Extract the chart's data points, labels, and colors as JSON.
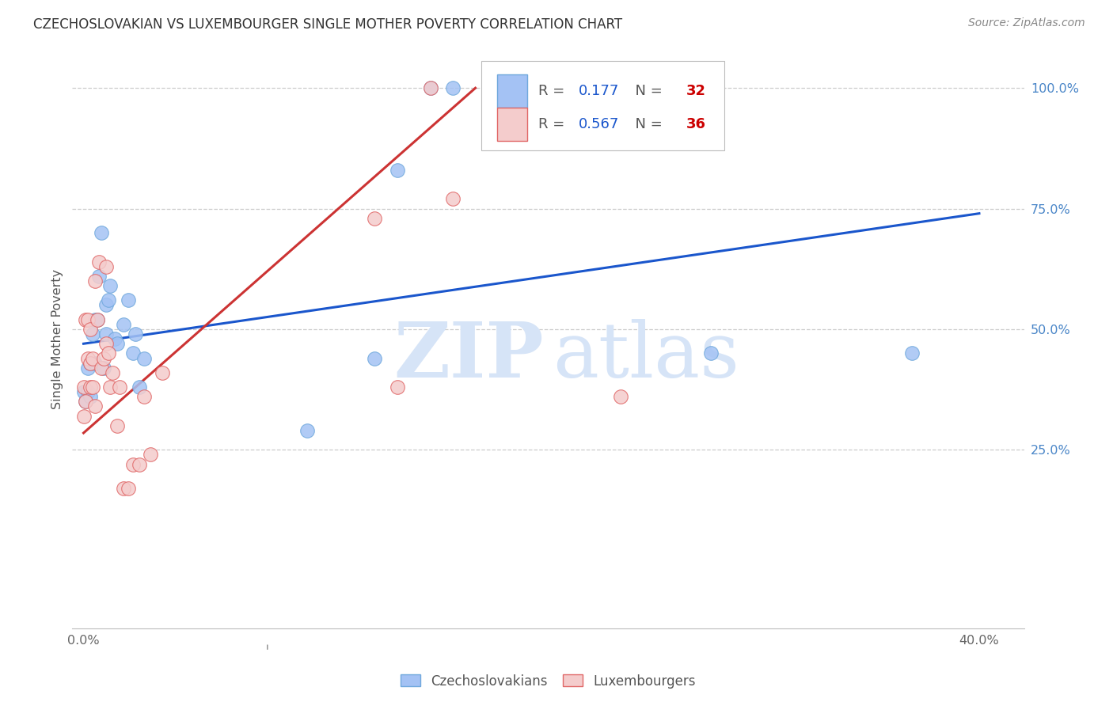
{
  "title": "CZECHOSLOVAKIAN VS LUXEMBOURGER SINGLE MOTHER POVERTY CORRELATION CHART",
  "source": "Source: ZipAtlas.com",
  "ylabel": "Single Mother Poverty",
  "blue_R": "0.177",
  "blue_N": "32",
  "pink_R": "0.567",
  "pink_N": "36",
  "blue_dot_color": "#a4c2f4",
  "pink_dot_color": "#f4cccc",
  "blue_dot_edge": "#6fa8dc",
  "pink_dot_edge": "#e06666",
  "blue_line_color": "#1a56cc",
  "pink_line_color": "#cc3333",
  "legend_num_color": "#1a56cc",
  "legend_N_color": "#cc0000",
  "watermark_color": "#d6e4f7",
  "ytick_color": "#4a86c8",
  "bg_color": "#ffffff",
  "grid_color": "#cccccc",
  "ylim_low": -0.12,
  "ylim_high": 1.08,
  "xlim_low": -0.005,
  "xlim_high": 0.42,
  "blue_line_x": [
    0.0,
    0.4
  ],
  "blue_line_y": [
    0.47,
    0.74
  ],
  "pink_line_x": [
    0.0,
    0.175
  ],
  "pink_line_y": [
    0.285,
    1.0
  ],
  "ytick_vals": [
    0.25,
    0.5,
    0.75,
    1.0
  ],
  "ytick_labels": [
    "25.0%",
    "50.0%",
    "75.0%",
    "100.0%"
  ],
  "xtick_vals": [
    0.0,
    0.1,
    0.2,
    0.3,
    0.4
  ],
  "xtick_labels": [
    "0.0%",
    "",
    "",
    "",
    "40.0%"
  ],
  "blue_x": [
    0.0,
    0.001,
    0.002,
    0.002,
    0.003,
    0.003,
    0.004,
    0.005,
    0.005,
    0.006,
    0.007,
    0.008,
    0.009,
    0.01,
    0.01,
    0.011,
    0.012,
    0.014,
    0.015,
    0.018,
    0.02,
    0.022,
    0.023,
    0.025,
    0.027,
    0.1,
    0.13,
    0.14,
    0.155,
    0.165,
    0.28,
    0.37
  ],
  "blue_y": [
    0.37,
    0.35,
    0.37,
    0.42,
    0.36,
    0.43,
    0.49,
    0.43,
    0.52,
    0.52,
    0.61,
    0.7,
    0.42,
    0.49,
    0.55,
    0.56,
    0.59,
    0.48,
    0.47,
    0.51,
    0.56,
    0.45,
    0.49,
    0.38,
    0.44,
    0.29,
    0.44,
    0.83,
    1.0,
    1.0,
    0.45,
    0.45
  ],
  "pink_x": [
    0.0,
    0.0,
    0.001,
    0.001,
    0.002,
    0.002,
    0.003,
    0.003,
    0.003,
    0.004,
    0.004,
    0.005,
    0.005,
    0.006,
    0.007,
    0.008,
    0.009,
    0.01,
    0.01,
    0.011,
    0.012,
    0.013,
    0.015,
    0.016,
    0.018,
    0.02,
    0.022,
    0.025,
    0.027,
    0.03,
    0.035,
    0.13,
    0.14,
    0.155,
    0.165,
    0.24
  ],
  "pink_y": [
    0.32,
    0.38,
    0.35,
    0.52,
    0.44,
    0.52,
    0.38,
    0.43,
    0.5,
    0.38,
    0.44,
    0.34,
    0.6,
    0.52,
    0.64,
    0.42,
    0.44,
    0.47,
    0.63,
    0.45,
    0.38,
    0.41,
    0.3,
    0.38,
    0.17,
    0.17,
    0.22,
    0.22,
    0.36,
    0.24,
    0.41,
    0.73,
    0.38,
    1.0,
    0.77,
    0.36
  ],
  "legend_label_blue": "Czechoslovakians",
  "legend_label_pink": "Luxembourgers"
}
